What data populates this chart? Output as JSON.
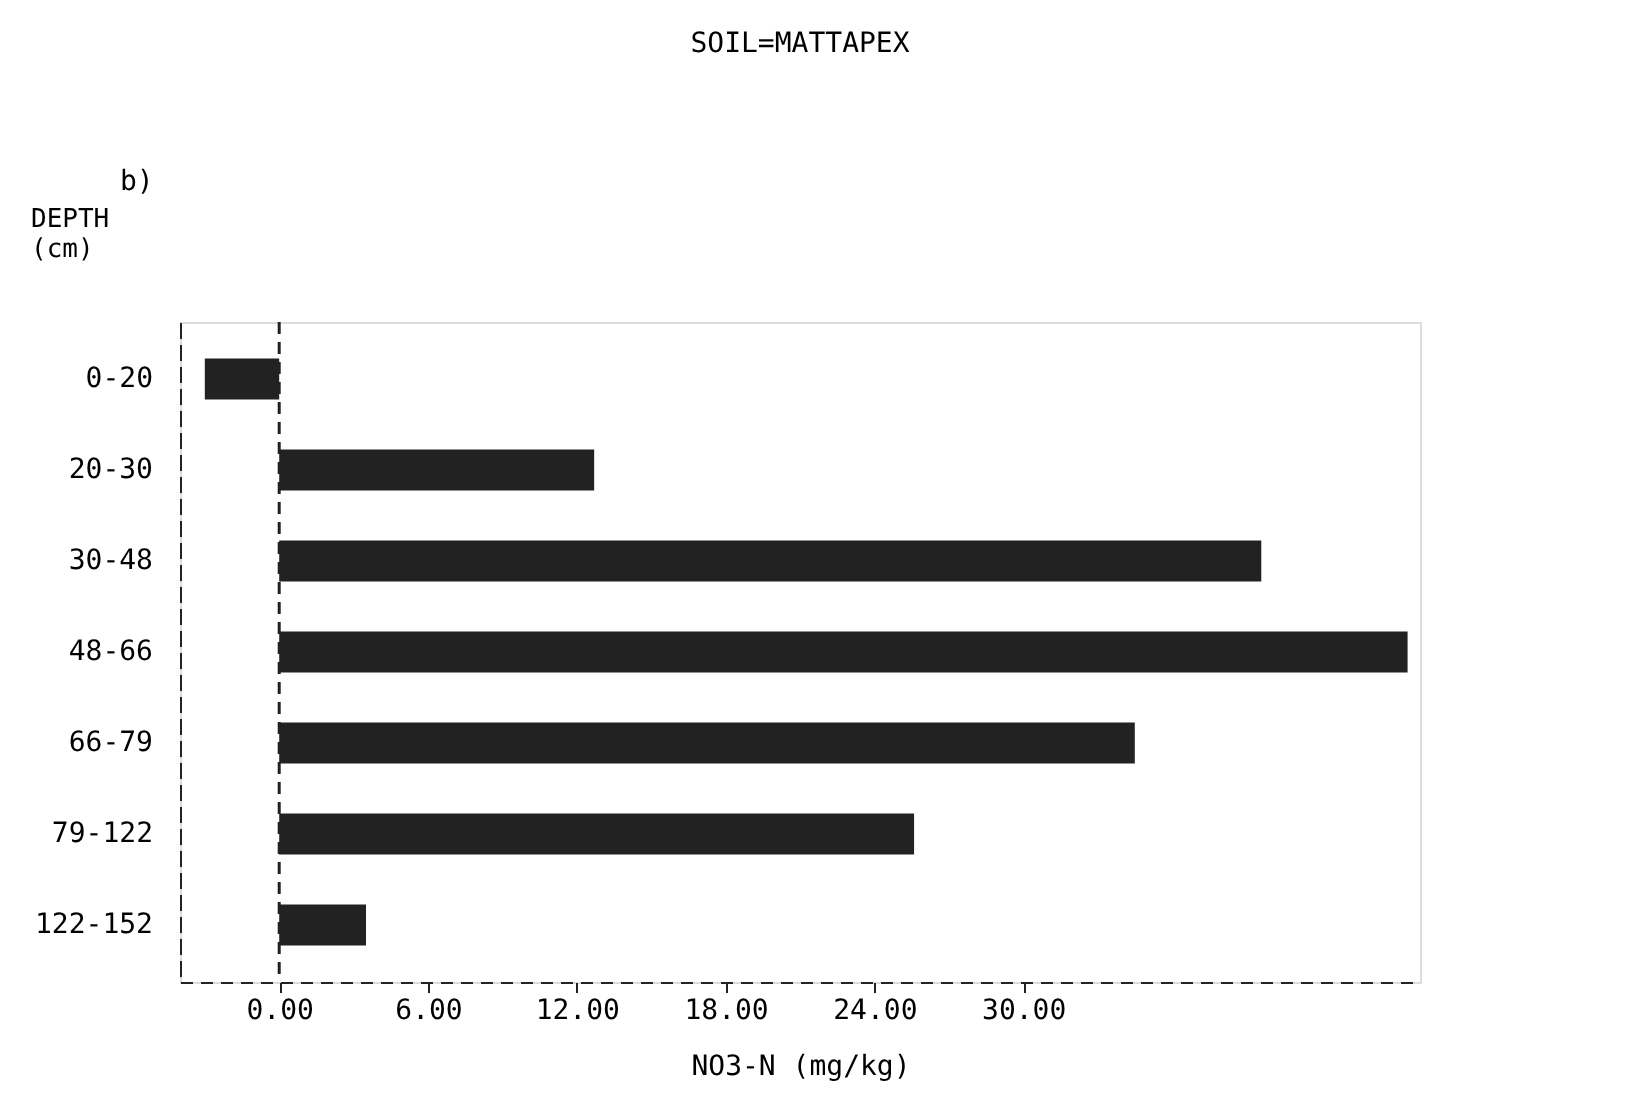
{
  "chart_data": {
    "type": "bar",
    "orientation": "horizontal",
    "title": "SOIL=MATTAPEX",
    "annotations": [
      "b)"
    ],
    "xlabel": "NO3-N  (mg/kg)",
    "ylabel": "DEPTH\n(cm)",
    "categories": [
      "0-20",
      "20-30",
      "30-48",
      "48-66",
      "66-79",
      "79-122",
      "122-152"
    ],
    "values": [
      -3,
      12.7,
      39.6,
      45.5,
      34.5,
      25.6,
      3.5
    ],
    "color": "#222222",
    "xlim": [
      -4,
      46
    ],
    "xticks": [
      {
        "value": 0,
        "label": "0.00"
      },
      {
        "value": 6,
        "label": "6.00"
      },
      {
        "value": 12,
        "label": "12.00"
      },
      {
        "value": 18,
        "label": "18.00"
      },
      {
        "value": 24,
        "label": "24.00"
      },
      {
        "value": 30,
        "label": "30.00"
      }
    ],
    "ref_lines": [
      {
        "axis": "x",
        "value": 0,
        "color": "#222222",
        "line_style": "dashed"
      }
    ],
    "grid": false
  }
}
